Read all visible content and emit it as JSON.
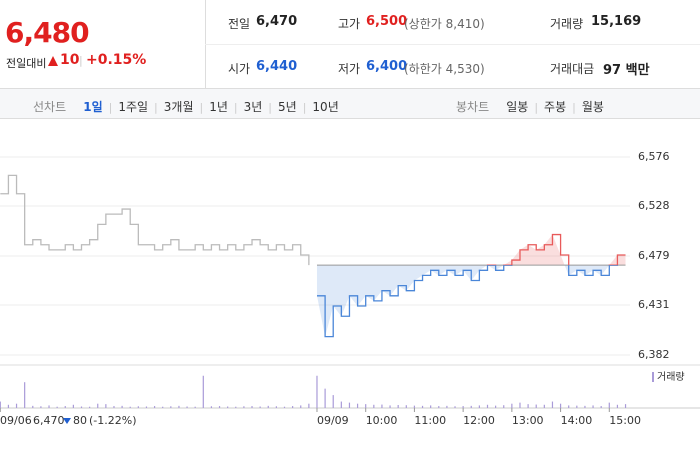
{
  "quote": {
    "price": "6,480",
    "change_label": "전일대비",
    "change": "10",
    "change_pct": "+0.15%"
  },
  "stats": [
    [
      {
        "label": "전일",
        "value": "6,470"
      },
      {
        "label": "고가",
        "value": "6,500",
        "note": "(상한가 8,410)"
      },
      {
        "label": "거래량",
        "value": "15,169"
      }
    ],
    [
      {
        "label": "시가",
        "value": "6,440"
      },
      {
        "label": "저가",
        "value": "6,400",
        "note": "(하한가 4,530)"
      },
      {
        "label": "거래대금",
        "value": "97 백만"
      }
    ]
  ],
  "tabs": {
    "line_label": "선차트",
    "line": [
      "1일",
      "1주일",
      "3개월",
      "1년",
      "3년",
      "5년",
      "10년"
    ],
    "candle_label": "봉차트",
    "candle": [
      "일봉",
      "주봉",
      "월봉"
    ]
  },
  "footer": {
    "change": "80",
    "change_pct": "(-1.22%)"
  },
  "chart_data": {
    "type": "line",
    "categories": [
      "09/06",
      null,
      null,
      null,
      null,
      null,
      null,
      null,
      null,
      null,
      null,
      null,
      null,
      null,
      null,
      null,
      null,
      null,
      null,
      null,
      null,
      null,
      null,
      null,
      null,
      null,
      null,
      null,
      null,
      null,
      null,
      null,
      null,
      null,
      null,
      null,
      null,
      null,
      null,
      "09/09",
      null,
      null,
      null,
      null,
      null,
      "10:00",
      null,
      null,
      null,
      null,
      null,
      "11:00",
      null,
      null,
      null,
      null,
      null,
      "12:00",
      null,
      null,
      null,
      null,
      null,
      "13:00",
      null,
      null,
      null,
      null,
      null,
      "14:00",
      null,
      null,
      null,
      null,
      null,
      "15:00",
      null,
      null
    ],
    "series": [
      {
        "name": "09/06",
        "color": "#bbbbbb",
        "values": [
          6540,
          6558,
          6540,
          6490,
          6495,
          6490,
          6485,
          6485,
          6490,
          6485,
          6490,
          6495,
          6510,
          6520,
          6520,
          6525,
          6510,
          6490,
          6490,
          6485,
          6490,
          6495,
          6485,
          6485,
          6490,
          6485,
          6490,
          6485,
          6490,
          6485,
          6490,
          6495,
          6490,
          6485,
          6490,
          6485,
          6490,
          6480,
          6470,
          null,
          null,
          null,
          null,
          null,
          null,
          null,
          null,
          null,
          null,
          null,
          null,
          null,
          null,
          null,
          null,
          null,
          null,
          null,
          null,
          null,
          null,
          null,
          null,
          null,
          null,
          null,
          null,
          null,
          null,
          null,
          null,
          null,
          null,
          null,
          null,
          null,
          null,
          null
        ]
      },
      {
        "name": "09/09",
        "color": "#4a86d8",
        "above_color": "#e85a5a",
        "values": [
          null,
          null,
          null,
          null,
          null,
          null,
          null,
          null,
          null,
          null,
          null,
          null,
          null,
          null,
          null,
          null,
          null,
          null,
          null,
          null,
          null,
          null,
          null,
          null,
          null,
          null,
          null,
          null,
          null,
          null,
          null,
          null,
          null,
          null,
          null,
          null,
          null,
          null,
          null,
          6440,
          6400,
          6430,
          6420,
          6440,
          6430,
          6440,
          6435,
          6445,
          6440,
          6450,
          6445,
          6455,
          6460,
          6465,
          6460,
          6465,
          6460,
          6465,
          6455,
          6465,
          6470,
          6465,
          6470,
          6475,
          6485,
          6490,
          6485,
          6490,
          6500,
          6480,
          6460,
          6465,
          6460,
          6465,
          6460,
          6470,
          6480,
          6480
        ]
      },
      {
        "name": "거래량",
        "color": "#a99bd8",
        "axis": "y2",
        "values": [
          300,
          150,
          200,
          1200,
          100,
          80,
          120,
          60,
          90,
          150,
          70,
          60,
          200,
          180,
          90,
          100,
          60,
          80,
          70,
          90,
          60,
          80,
          100,
          70,
          60,
          1500,
          80,
          90,
          70,
          60,
          80,
          90,
          70,
          100,
          80,
          60,
          90,
          120,
          200,
          1500,
          900,
          600,
          300,
          250,
          200,
          180,
          150,
          160,
          120,
          140,
          130,
          110,
          100,
          120,
          90,
          100,
          80,
          90,
          100,
          120,
          150,
          110,
          130,
          200,
          250,
          180,
          160,
          150,
          300,
          200,
          120,
          110,
          100,
          120,
          90,
          250,
          150,
          180
        ]
      }
    ],
    "reference_line": {
      "value": 6470,
      "label": "6,470"
    },
    "ylim": [
      6360,
      6600
    ],
    "yticks": [
      {
        "value": 6576,
        "label": "6,576"
      },
      {
        "value": 6528,
        "label": "6,528"
      },
      {
        "value": 6479,
        "label": "6,479"
      },
      {
        "value": 6431,
        "label": "6,431"
      },
      {
        "value": 6382,
        "label": "6,382"
      }
    ],
    "y2lim": [
      0,
      2000
    ],
    "grid": true
  }
}
